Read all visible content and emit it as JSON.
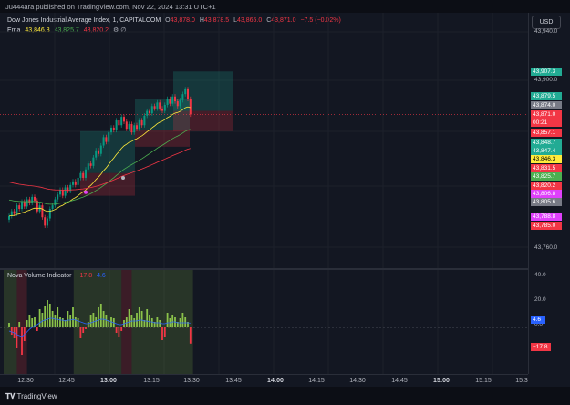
{
  "publisher": "Ju444ara published on TradingView.com, Nov 22, 2024 13:31 UTC+1",
  "symbol": {
    "title": "Dow Jones Industrial Average Index, 1, CAPITALCOM",
    "o_label": "O",
    "o": "43,878.0",
    "h_label": "H",
    "h": "43,878.5",
    "l_label": "L",
    "l": "43,865.0",
    "c_label": "C",
    "c": "43,871.0",
    "change": "−7.5 (−0.02%)"
  },
  "ema": {
    "label": "Ema",
    "v1": "43,846.3",
    "v2": "43,825.7",
    "v3": "43,820.2",
    "icons": "⚙ ∅"
  },
  "indicator": {
    "label": "Nova Volume Indicator",
    "v1": "−17.8",
    "v2": "4.6"
  },
  "currency": "USD",
  "y_ticks": [
    "43,940.0",
    "43,900.0",
    "43,760.0"
  ],
  "lower_ticks": [
    "40.0",
    "20.0",
    "0.0"
  ],
  "price_tags": [
    {
      "text": "43,907.3",
      "color": "#22ab94",
      "fg": "#ffffff"
    },
    {
      "text": "43,879.5",
      "color": "#22ab94",
      "fg": "#ffffff"
    },
    {
      "text": "43,874.0",
      "color": "#787b86",
      "fg": "#ffffff"
    },
    {
      "text": "43,871.0",
      "color": "#f23645",
      "fg": "#ffffff"
    },
    {
      "text": "00:21",
      "color": "#f23645",
      "fg": "#ffffff"
    },
    {
      "text": "43,857.1",
      "color": "#f23645",
      "fg": "#ffffff"
    },
    {
      "text": "43,848.7",
      "color": "#22ab94",
      "fg": "#ffffff"
    },
    {
      "text": "43,847.4",
      "color": "#22ab94",
      "fg": "#ffffff"
    },
    {
      "text": "43,846.3",
      "color": "#ffeb3b",
      "fg": "#000000"
    },
    {
      "text": "43,831.5",
      "color": "#f23645",
      "fg": "#ffffff"
    },
    {
      "text": "43,825.7",
      "color": "#4caf50",
      "fg": "#ffffff"
    },
    {
      "text": "43,820.2",
      "color": "#f23645",
      "fg": "#ffffff"
    },
    {
      "text": "43,806.8",
      "color": "#e040fb",
      "fg": "#ffffff"
    },
    {
      "text": "43,805.6",
      "color": "#787b86",
      "fg": "#ffffff"
    },
    {
      "text": "43,788.8",
      "color": "#e040fb",
      "fg": "#ffffff"
    },
    {
      "text": "43,785.0",
      "color": "#f23645",
      "fg": "#ffffff"
    }
  ],
  "lower_tags": [
    {
      "text": "4.6",
      "color": "#2962ff"
    },
    {
      "text": "−17.8",
      "color": "#f23645"
    }
  ],
  "x_ticks": [
    "12:30",
    "12:45",
    "13:00",
    "13:15",
    "13:30",
    "13:45",
    "14:00",
    "14:15",
    "14:30",
    "14:45",
    "15:00",
    "15:15",
    "15:3"
  ],
  "footer": {
    "logo": "TradingView"
  },
  "colors": {
    "up": "#089981",
    "down": "#f23645",
    "ema_fast": "#ffeb3b",
    "ema_mid": "#4caf50",
    "ema_slow": "#f23645",
    "bull_zone": "#22ab94",
    "bear_zone": "#f23645",
    "vol_up": "#8bc34a",
    "vol_down": "#f23645",
    "osc": "#2962ff"
  },
  "chart_data": {
    "type": "candlestick",
    "price_range": [
      43750,
      43950
    ],
    "candles_close": [
      43786,
      43790,
      43788,
      43795,
      43792,
      43798,
      43794,
      43800,
      43797,
      43802,
      43799,
      43790,
      43795,
      43785,
      43778,
      43784,
      43792,
      43795,
      43800,
      43804,
      43808,
      43803,
      43810,
      43807,
      43812,
      43815,
      43812,
      43818,
      43822,
      43818,
      43825,
      43830,
      43828,
      43835,
      43841,
      43838,
      43845,
      43852,
      43848,
      43856,
      43860,
      43858,
      43866,
      43862,
      43869,
      43865,
      43859,
      43863,
      43856,
      43862,
      43859,
      43866,
      43862,
      43870,
      43874,
      43872,
      43878,
      43876,
      43881,
      43876,
      43874,
      43879,
      43884,
      43880,
      43886,
      43882,
      43878,
      43883,
      43888,
      43892,
      43884,
      43871
    ],
    "volume_osc": [
      5,
      -8,
      -12,
      -22,
      6,
      -30,
      -15,
      8,
      14,
      10,
      12,
      -4,
      20,
      16,
      24,
      30,
      26,
      18,
      14,
      22,
      12,
      10,
      8,
      18,
      14,
      22,
      12,
      10,
      -12,
      -6,
      -2,
      6,
      14,
      16,
      12,
      22,
      26,
      18,
      14,
      8,
      12,
      10,
      -6,
      -10,
      -4,
      8,
      12,
      20,
      14,
      10,
      16,
      22,
      18,
      8,
      20,
      14,
      10,
      6,
      12,
      8,
      -14,
      -10,
      16,
      10,
      14,
      12,
      6,
      10,
      16,
      12,
      6,
      -17.8
    ],
    "osc_line": [
      -4,
      -5,
      -6,
      -8,
      -9,
      -10,
      -8,
      -5,
      -2,
      0,
      2,
      3,
      5,
      7,
      8,
      9,
      10,
      10,
      9,
      9,
      8,
      8,
      7,
      8,
      8,
      9,
      8,
      7,
      6,
      5,
      4,
      4,
      5,
      6,
      7,
      8,
      9,
      9,
      8,
      7,
      6,
      5,
      4,
      3,
      3,
      4,
      5,
      6,
      7,
      7,
      7,
      8,
      8,
      7,
      7,
      6,
      6,
      5,
      5,
      5,
      4,
      4,
      5,
      5,
      6,
      6,
      5,
      5,
      5,
      5,
      5,
      4.6
    ],
    "lower_range": [
      -45,
      45
    ]
  }
}
